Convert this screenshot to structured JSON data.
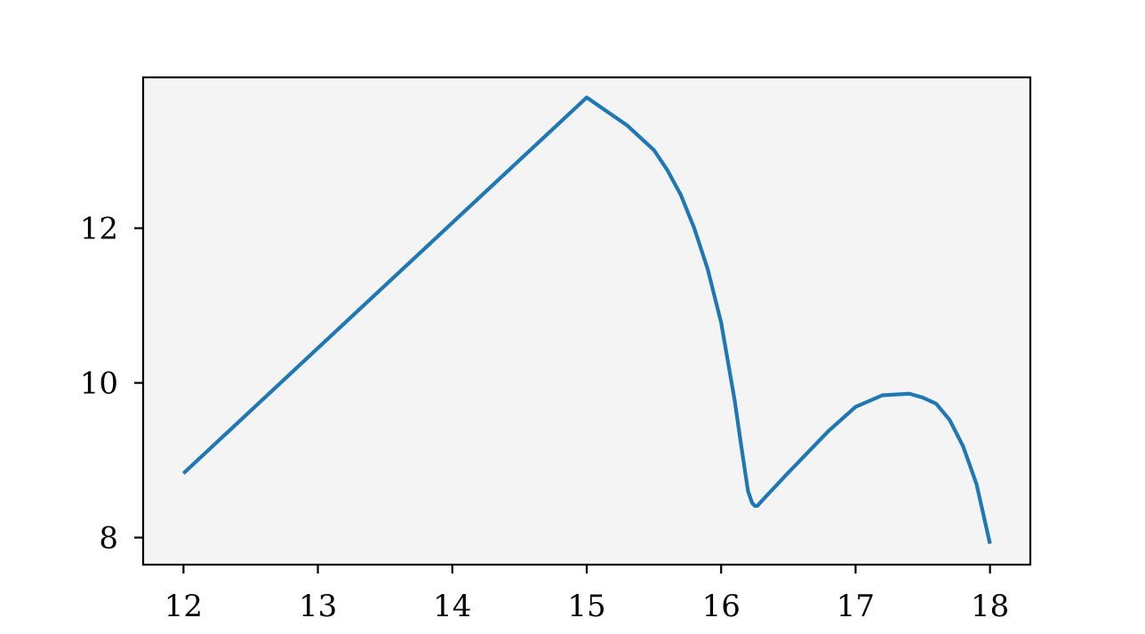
{
  "chart_data": {
    "type": "line",
    "title": "",
    "xlabel": "",
    "ylabel": "",
    "xlim": [
      11.7,
      18.3
    ],
    "ylim": [
      7.65,
      13.95
    ],
    "xticks": [
      12,
      13,
      14,
      15,
      16,
      17,
      18
    ],
    "yticks": [
      8,
      10,
      12
    ],
    "grid": false,
    "colors": {
      "line": "#1f77b4",
      "plot_background": "#f4f4f4",
      "axes": "#000000"
    },
    "series": [
      {
        "x": [
          12.0,
          15.0,
          15.3,
          15.5,
          15.6,
          15.7,
          15.8,
          15.9,
          16.0,
          16.1,
          16.15,
          16.2,
          16.23,
          16.25,
          16.27,
          16.3,
          16.5,
          16.8,
          17.0,
          17.2,
          17.4,
          17.5,
          17.6,
          17.7,
          17.8,
          17.9,
          18.0
        ],
        "y": [
          8.83,
          13.69,
          13.33,
          13.01,
          12.75,
          12.43,
          12.0,
          11.47,
          10.78,
          9.78,
          9.18,
          8.6,
          8.45,
          8.41,
          8.41,
          8.47,
          8.84,
          9.38,
          9.69,
          9.84,
          9.86,
          9.81,
          9.73,
          9.52,
          9.18,
          8.69,
          7.92
        ]
      }
    ]
  }
}
